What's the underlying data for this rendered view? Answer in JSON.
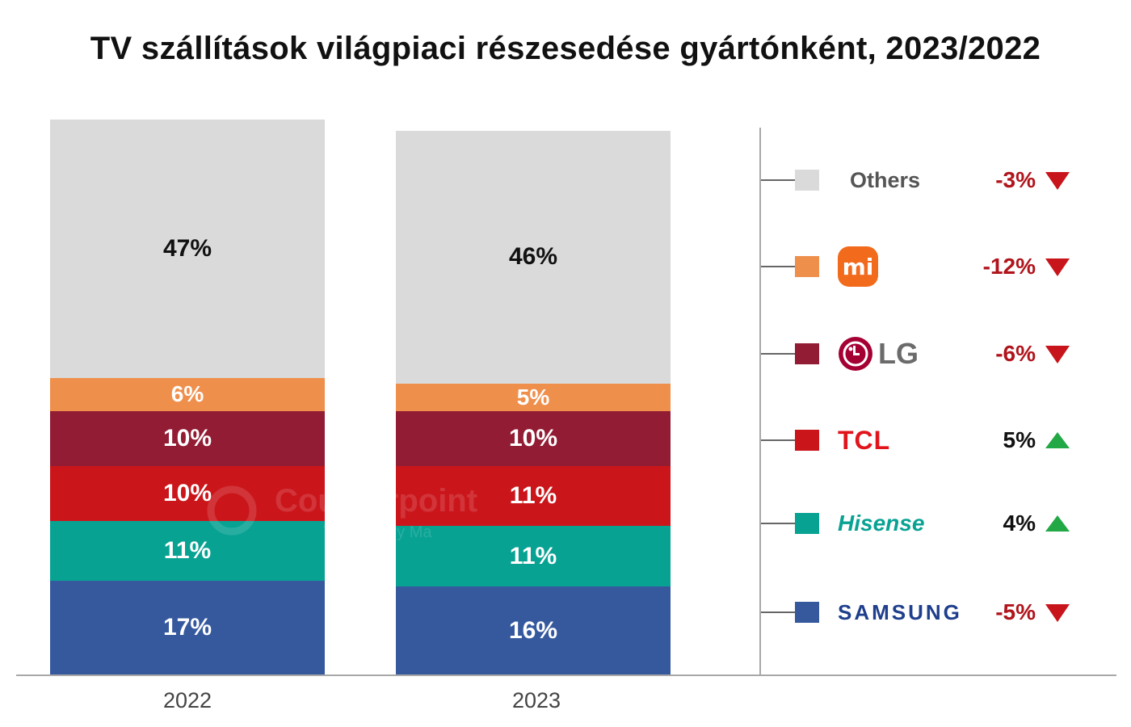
{
  "title": "TV szállítások világpiaci részesedése gyártónként, 2023/2022",
  "watermark": {
    "name": "Counterpoint",
    "sub": "Technology Ma"
  },
  "chart_data": {
    "type": "bar",
    "stacked": true,
    "title": "TV szállítások világpiaci részesedése gyártónként, 2023/2022",
    "categories": [
      "2022",
      "2023"
    ],
    "series": [
      {
        "name": "Samsung",
        "color": "#36599E",
        "values": [
          17,
          16
        ],
        "labels": [
          "17%",
          "16%"
        ]
      },
      {
        "name": "Hisense",
        "color": "#08A293",
        "values": [
          11,
          11
        ],
        "labels": [
          "11%",
          "11%"
        ]
      },
      {
        "name": "TCL",
        "color": "#CA161B",
        "values": [
          10,
          11
        ],
        "labels": [
          "10%",
          "11%"
        ]
      },
      {
        "name": "LG",
        "color": "#921C33",
        "values": [
          10,
          10
        ],
        "labels": [
          "10%",
          "10%"
        ]
      },
      {
        "name": "Xiaomi",
        "color": "#EF8F4C",
        "values": [
          6,
          5
        ],
        "labels": [
          "6%",
          "5%"
        ]
      },
      {
        "name": "Others",
        "color": "#DADADA",
        "values": [
          47,
          46
        ],
        "labels": [
          "47%",
          "46%"
        ]
      }
    ],
    "grid": false,
    "legend_placement": "right",
    "legend_changes": [
      {
        "series": "Others",
        "change": "-3%",
        "direction": "down"
      },
      {
        "series": "Xiaomi",
        "change": "-12%",
        "direction": "down"
      },
      {
        "series": "LG",
        "change": "-6%",
        "direction": "down"
      },
      {
        "series": "TCL",
        "change": "5%",
        "direction": "up"
      },
      {
        "series": "Hisense",
        "change": "4%",
        "direction": "up"
      },
      {
        "series": "Samsung",
        "change": "-5%",
        "direction": "down"
      }
    ]
  },
  "legend": [
    {
      "key": "others",
      "name_text": "Others",
      "brand_icon": "others-text",
      "change": "-3%",
      "direction": "down",
      "color": "#DADADA"
    },
    {
      "key": "xiaomi",
      "name_text": "mi",
      "brand_icon": "xiaomi-logo-icon",
      "change": "-12%",
      "direction": "down",
      "color": "#EF8F4C"
    },
    {
      "key": "lg",
      "name_text": "LG",
      "brand_icon": "lg-logo-icon",
      "change": "-6%",
      "direction": "down",
      "color": "#921C33"
    },
    {
      "key": "tcl",
      "name_text": "TCL",
      "brand_icon": "tcl-wordmark",
      "change": "5%",
      "direction": "up",
      "color": "#CA161B"
    },
    {
      "key": "hisense",
      "name_text": "Hisense",
      "brand_icon": "hisense-wordmark",
      "change": "4%",
      "direction": "up",
      "color": "#08A293"
    },
    {
      "key": "samsung",
      "name_text": "SAMSUNG",
      "brand_icon": "samsung-wordmark",
      "change": "-5%",
      "direction": "down",
      "color": "#36599E"
    }
  ],
  "colors": {
    "down": "#C8141B",
    "up": "#22A845",
    "others_text": "#555555",
    "down_text": "#B0141B",
    "up_text": "#111111"
  }
}
